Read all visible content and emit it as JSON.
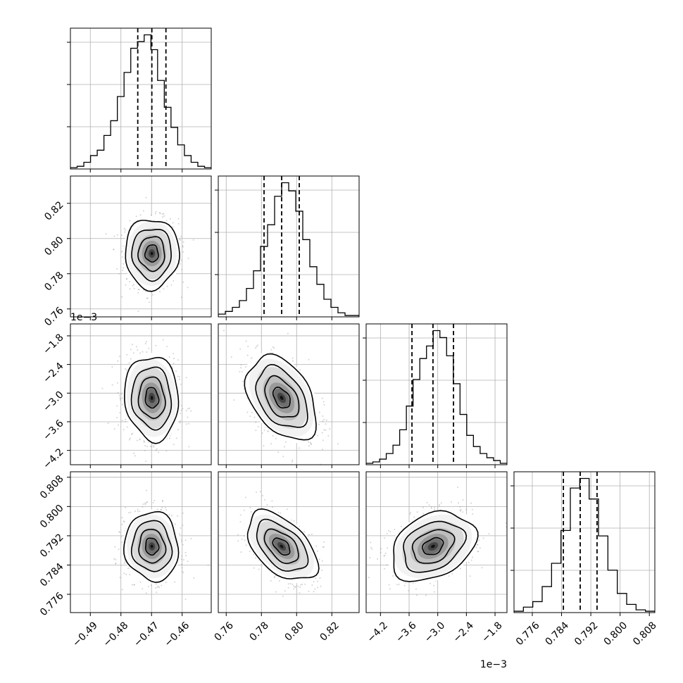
{
  "chart_data": {
    "type": "corner",
    "grid": true,
    "parameters": [
      {
        "range": [
          -0.4965,
          -0.4505
        ],
        "ticks": [
          -0.49,
          -0.48,
          -0.47,
          -0.46
        ],
        "tick_labels": [
          "−0.49",
          "−0.48",
          "−0.47",
          "−0.46"
        ],
        "offset_label": "",
        "quantiles": [
          -0.4745,
          -0.4699,
          -0.4653
        ],
        "hist": [
          0.01,
          0.02,
          0.05,
          0.1,
          0.14,
          0.25,
          0.36,
          0.54,
          0.72,
          0.9,
          0.95,
          1.0,
          0.89,
          0.66,
          0.46,
          0.31,
          0.18,
          0.1,
          0.05,
          0.02,
          0.01
        ],
        "center": -0.4699,
        "sigma": 0.0043
      },
      {
        "range": [
          0.7555,
          0.8355
        ],
        "ticks": [
          0.76,
          0.78,
          0.8,
          0.82
        ],
        "tick_labels": [
          "0.76",
          "0.78",
          "0.80",
          "0.82"
        ],
        "offset_label": "",
        "quantiles": [
          0.7815,
          0.7915,
          0.8015
        ],
        "hist": [
          0.02,
          0.04,
          0.07,
          0.12,
          0.21,
          0.34,
          0.52,
          0.68,
          0.89,
          0.99,
          0.93,
          0.78,
          0.57,
          0.37,
          0.24,
          0.13,
          0.07,
          0.03,
          0.01,
          0.01
        ],
        "center": 0.7915,
        "sigma": 0.0097
      },
      {
        "range": [
          -4.5,
          -1.55
        ],
        "ticks": [
          -4.2,
          -3.6,
          -3.0,
          -2.4,
          -1.8
        ],
        "tick_labels": [
          "−4.2",
          "−3.6",
          "−3.0",
          "−2.4",
          "−1.8"
        ],
        "offset_label": "1e−3",
        "quantiles": [
          -3.54,
          -3.1,
          -2.67
        ],
        "hist": [
          0.01,
          0.02,
          0.04,
          0.08,
          0.14,
          0.25,
          0.42,
          0.61,
          0.76,
          0.85,
          0.96,
          0.91,
          0.78,
          0.58,
          0.36,
          0.21,
          0.13,
          0.08,
          0.05,
          0.03,
          0.01
        ],
        "center": -3.1,
        "sigma": 0.43
      },
      {
        "range": [
          0.771,
          0.8095
        ],
        "ticks": [
          0.776,
          0.784,
          0.792,
          0.8,
          0.808
        ],
        "tick_labels": [
          "0.776",
          "0.784",
          "0.792",
          "0.800",
          "0.808"
        ],
        "offset_label": "",
        "quantiles": [
          0.7845,
          0.7891,
          0.7937
        ],
        "hist": [
          0.01,
          0.04,
          0.08,
          0.19,
          0.36,
          0.6,
          0.91,
          0.98,
          0.83,
          0.56,
          0.31,
          0.14,
          0.06,
          0.02,
          0.01
        ],
        "center": 0.7891,
        "sigma": 0.0046
      }
    ],
    "correlations": [
      [
        1.0,
        0.0,
        -0.08,
        -0.05
      ],
      [
        0.0,
        1.0,
        -0.4,
        -0.5
      ],
      [
        -0.08,
        -0.4,
        1.0,
        0.3
      ],
      [
        -0.05,
        -0.5,
        0.3,
        1.0
      ]
    ]
  }
}
